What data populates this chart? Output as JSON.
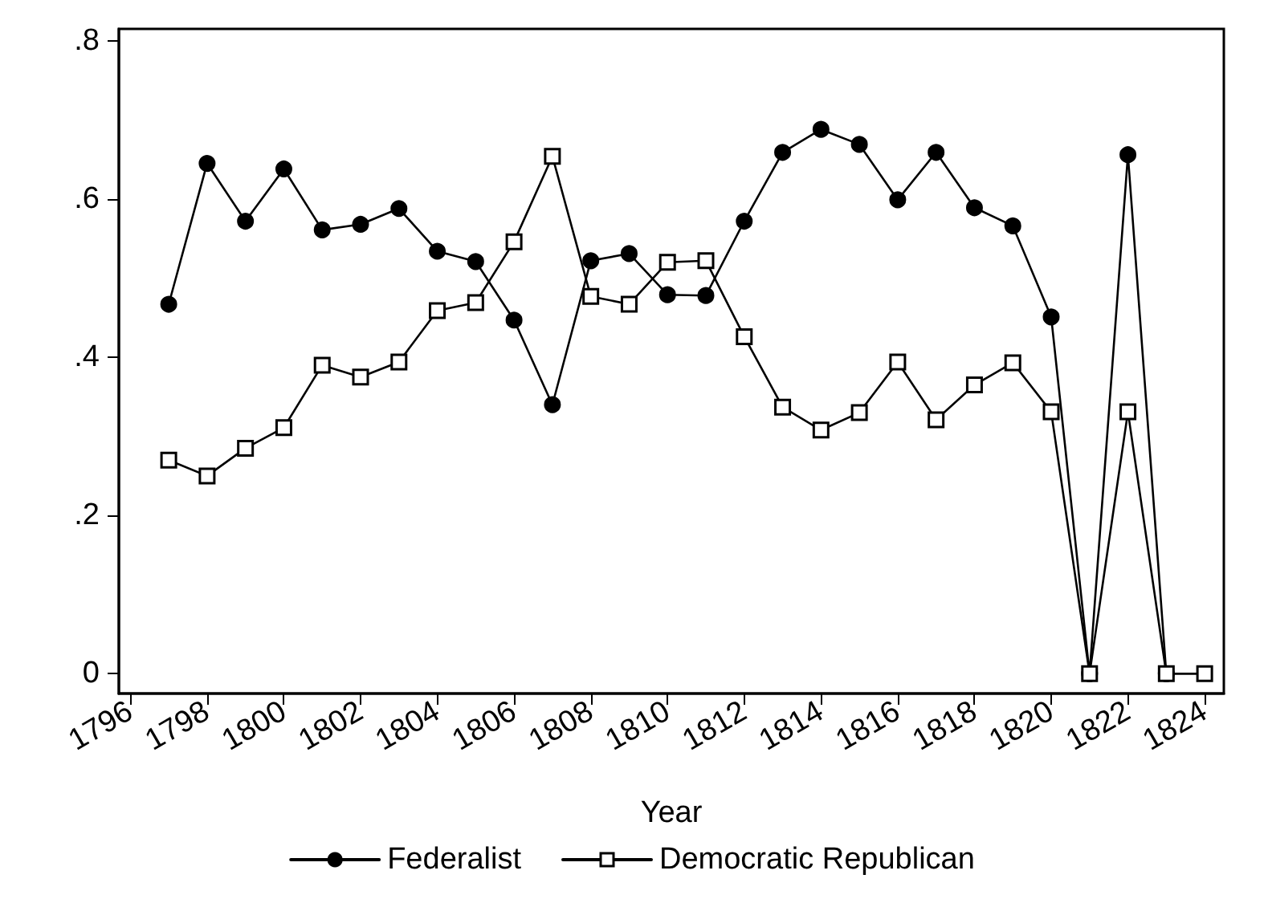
{
  "chart_data": {
    "type": "line",
    "xlabel": "Year",
    "x": [
      1797,
      1798,
      1799,
      1800,
      1801,
      1802,
      1803,
      1804,
      1805,
      1806,
      1807,
      1808,
      1809,
      1810,
      1811,
      1812,
      1813,
      1814,
      1815,
      1816,
      1817,
      1818,
      1819,
      1820,
      1821,
      1822,
      1823,
      1824
    ],
    "series": [
      {
        "name": "Federalist",
        "color": "#000000",
        "marker": "circle",
        "values": [
          0.467,
          0.645,
          0.572,
          0.638,
          0.561,
          0.568,
          0.588,
          0.534,
          0.521,
          0.447,
          0.34,
          0.522,
          0.531,
          0.479,
          0.478,
          0.572,
          0.659,
          0.688,
          0.669,
          0.599,
          0.659,
          0.589,
          0.566,
          0.451,
          0,
          0.656,
          0,
          null
        ]
      },
      {
        "name": "Democratic Republican",
        "color": "#000000",
        "marker": "square",
        "values": [
          0.27,
          0.25,
          0.285,
          0.311,
          0.39,
          0.375,
          0.394,
          0.459,
          0.469,
          0.546,
          0.654,
          0.477,
          0.467,
          0.52,
          0.522,
          0.426,
          0.337,
          0.308,
          0.33,
          0.394,
          0.321,
          0.365,
          0.393,
          0.331,
          0,
          0.331,
          0,
          0
        ]
      }
    ],
    "xlim": [
      1795.7,
      1824.5
    ],
    "xticks": [
      1796,
      1798,
      1800,
      1802,
      1804,
      1806,
      1808,
      1810,
      1812,
      1814,
      1816,
      1818,
      1820,
      1822,
      1824
    ],
    "ylim": [
      -0.025,
      0.815
    ],
    "yticks": [
      {
        "value": 0,
        "label": "0"
      },
      {
        "value": 0.2,
        "label": ".2"
      },
      {
        "value": 0.4,
        "label": ".4"
      },
      {
        "value": 0.6,
        "label": ".6"
      },
      {
        "value": 0.8,
        "label": ".8"
      }
    ],
    "grid": false,
    "legend": "bottom",
    "line_style": "solid"
  }
}
